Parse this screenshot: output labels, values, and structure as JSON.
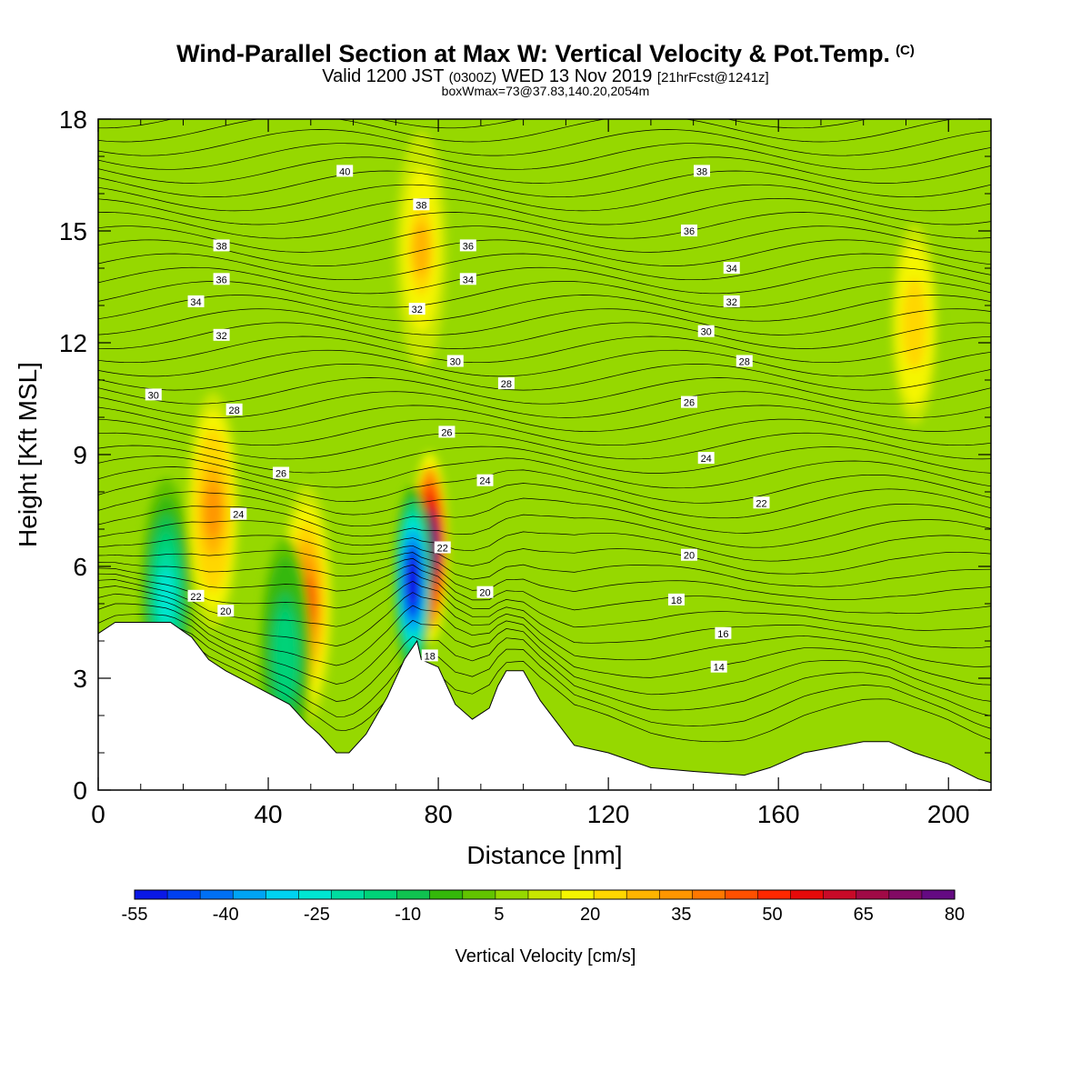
{
  "header": {
    "title": "Wind-Parallel Section at Max W: Vertical Velocity & Pot.Temp.",
    "copyright": "(C)",
    "subtitle_main_1": "Valid 1200 JST",
    "subtitle_small_1": "(0300Z)",
    "subtitle_main_2": "WED 13 Nov 2019",
    "subtitle_small_2": "[21hrFcst@1241z]",
    "box_info": "boxWmax=73@37.83,140.20,2054m"
  },
  "chart_data": {
    "type": "heatmap",
    "title": "Wind-Parallel Section at Max W: Vertical Velocity & Pot.Temp.",
    "xlabel": "Distance [nm]",
    "ylabel": "Height [Kft MSL]",
    "xlim": [
      0,
      210
    ],
    "ylim": [
      0,
      18
    ],
    "x_ticks": [
      0,
      40,
      80,
      120,
      160,
      200
    ],
    "y_ticks": [
      0,
      3,
      6,
      9,
      12,
      15,
      18
    ],
    "colorbar": {
      "label": "Vertical Velocity [cm/s]",
      "levels": [
        -55,
        -50,
        -45,
        -40,
        -35,
        -30,
        -25,
        -20,
        -15,
        -10,
        -5,
        0,
        5,
        10,
        15,
        20,
        25,
        30,
        35,
        40,
        45,
        50,
        55,
        60,
        65,
        70,
        75,
        80
      ],
      "tick_labels": [
        "-55",
        "-40",
        "-25",
        "-10",
        "5",
        "20",
        "35",
        "50",
        "65",
        "80"
      ],
      "colors": [
        "#0a18e6",
        "#0040f0",
        "#0070f5",
        "#00a4f5",
        "#00d2f0",
        "#00e6d2",
        "#00dca0",
        "#00d278",
        "#10c250",
        "#34b80a",
        "#62c400",
        "#96d800",
        "#c8e600",
        "#f5f500",
        "#ffd700",
        "#ffb400",
        "#ff9600",
        "#ff7800",
        "#ff5000",
        "#ff2800",
        "#e60a0a",
        "#c80a28",
        "#a00a46",
        "#820a64",
        "#640a82"
      ]
    },
    "terrain_profile": {
      "x": [
        0,
        4,
        17,
        22,
        26,
        30,
        35,
        45,
        49,
        52,
        56,
        59,
        63,
        67,
        68,
        72,
        75,
        76,
        80,
        84,
        88,
        92,
        94,
        96,
        100,
        104,
        108,
        112,
        120,
        130,
        140,
        152,
        158,
        166,
        180,
        186,
        192,
        200,
        207,
        210
      ],
      "height_kft": [
        4.2,
        4.5,
        4.5,
        4.1,
        3.5,
        3.2,
        2.9,
        2.3,
        1.8,
        1.5,
        1.0,
        1.0,
        1.5,
        2.3,
        2.5,
        3.5,
        4.0,
        3.5,
        3.3,
        2.3,
        1.9,
        2.2,
        2.8,
        3.2,
        3.2,
        2.4,
        1.8,
        1.2,
        1.0,
        0.6,
        0.5,
        0.4,
        0.6,
        1.0,
        1.3,
        1.3,
        1.0,
        0.7,
        0.3,
        0.2
      ]
    },
    "w_features": [
      {
        "x": 78,
        "height_kft": 6.5,
        "value": 73
      },
      {
        "x": 74,
        "height_kft": 5.6,
        "value": -55
      },
      {
        "x": 27,
        "height_kft": 7.5,
        "value": 28
      },
      {
        "x": 49,
        "height_kft": 5.0,
        "value": 35
      },
      {
        "x": 16,
        "height_kft": 5.2,
        "value": -28
      },
      {
        "x": 76,
        "height_kft": 14.5,
        "value": 20
      },
      {
        "x": 192,
        "height_kft": 12.5,
        "value": 18
      },
      {
        "x": 44,
        "height_kft": 3.6,
        "value": -20
      }
    ],
    "theta_contour_labels": [
      {
        "text": "40",
        "x": 58,
        "height_kft": 16.6
      },
      {
        "text": "38",
        "x": 29,
        "height_kft": 14.6
      },
      {
        "text": "38",
        "x": 76,
        "height_kft": 15.7
      },
      {
        "text": "38",
        "x": 142,
        "height_kft": 16.6
      },
      {
        "text": "36",
        "x": 29,
        "height_kft": 13.7
      },
      {
        "text": "36",
        "x": 87,
        "height_kft": 14.6
      },
      {
        "text": "36",
        "x": 139,
        "height_kft": 15.0
      },
      {
        "text": "34",
        "x": 23,
        "height_kft": 13.1
      },
      {
        "text": "34",
        "x": 87,
        "height_kft": 13.7
      },
      {
        "text": "34",
        "x": 149,
        "height_kft": 14.0
      },
      {
        "text": "32",
        "x": 29,
        "height_kft": 12.2
      },
      {
        "text": "32",
        "x": 75,
        "height_kft": 12.9
      },
      {
        "text": "32",
        "x": 149,
        "height_kft": 13.1
      },
      {
        "text": "30",
        "x": 13,
        "height_kft": 10.6
      },
      {
        "text": "30",
        "x": 84,
        "height_kft": 11.5
      },
      {
        "text": "30",
        "x": 143,
        "height_kft": 12.3
      },
      {
        "text": "28",
        "x": 32,
        "height_kft": 10.2
      },
      {
        "text": "28",
        "x": 96,
        "height_kft": 10.9
      },
      {
        "text": "28",
        "x": 152,
        "height_kft": 11.5
      },
      {
        "text": "26",
        "x": 43,
        "height_kft": 8.5
      },
      {
        "text": "26",
        "x": 82,
        "height_kft": 9.6
      },
      {
        "text": "26",
        "x": 139,
        "height_kft": 10.4
      },
      {
        "text": "24",
        "x": 33,
        "height_kft": 7.4
      },
      {
        "text": "24",
        "x": 91,
        "height_kft": 8.3
      },
      {
        "text": "24",
        "x": 143,
        "height_kft": 8.9
      },
      {
        "text": "22",
        "x": 23,
        "height_kft": 5.2
      },
      {
        "text": "22",
        "x": 81,
        "height_kft": 6.5
      },
      {
        "text": "22",
        "x": 156,
        "height_kft": 7.7
      },
      {
        "text": "20",
        "x": 30,
        "height_kft": 4.8
      },
      {
        "text": "20",
        "x": 91,
        "height_kft": 5.3
      },
      {
        "text": "20",
        "x": 139,
        "height_kft": 6.3
      },
      {
        "text": "18",
        "x": 78,
        "height_kft": 3.6
      },
      {
        "text": "18",
        "x": 136,
        "height_kft": 5.1
      },
      {
        "text": "16",
        "x": 147,
        "height_kft": 4.2
      },
      {
        "text": "14",
        "x": 146,
        "height_kft": 3.3
      }
    ]
  }
}
